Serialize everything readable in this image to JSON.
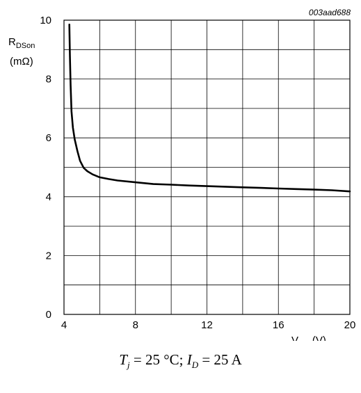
{
  "chart_data": {
    "type": "line",
    "code": "003aad688",
    "ylabel": {
      "main": "R",
      "sub": "DSon",
      "unit": "(mΩ)"
    },
    "xlabel": {
      "main": "V",
      "sub": "GS",
      "unit": "(V)"
    },
    "xlim": [
      4,
      20
    ],
    "ylim": [
      0,
      10
    ],
    "xticks": [
      "4",
      "8",
      "12",
      "16",
      "20"
    ],
    "xtick_values": [
      4,
      8,
      12,
      16,
      20
    ],
    "yticks": [
      "0",
      "2",
      "4",
      "6",
      "8",
      "10"
    ],
    "ytick_values": [
      0,
      2,
      4,
      6,
      8,
      10
    ],
    "grid": {
      "x_step": 2,
      "y_step": 1
    },
    "series": [
      {
        "color": "#000000",
        "x": [
          4.3,
          4.33,
          4.37,
          4.42,
          4.5,
          4.6,
          4.75,
          4.9,
          5.1,
          5.3,
          5.6,
          6.0,
          6.5,
          7.0,
          8.0,
          9.0,
          10.0,
          11.0,
          12.0,
          13.0,
          14.0,
          15.0,
          16.0,
          17.0,
          18.0,
          19.0,
          20.0
        ],
        "y": [
          9.85,
          8.8,
          7.8,
          6.9,
          6.35,
          5.95,
          5.55,
          5.22,
          4.98,
          4.87,
          4.76,
          4.66,
          4.6,
          4.55,
          4.49,
          4.43,
          4.41,
          4.38,
          4.36,
          4.34,
          4.32,
          4.3,
          4.28,
          4.26,
          4.24,
          4.22,
          4.18
        ]
      }
    ]
  },
  "caption": {
    "t_main": "T",
    "t_sub": "j",
    "t_rest": " = 25 °C; ",
    "i_main": "I",
    "i_sub": "D",
    "i_rest": " = 25 A"
  }
}
